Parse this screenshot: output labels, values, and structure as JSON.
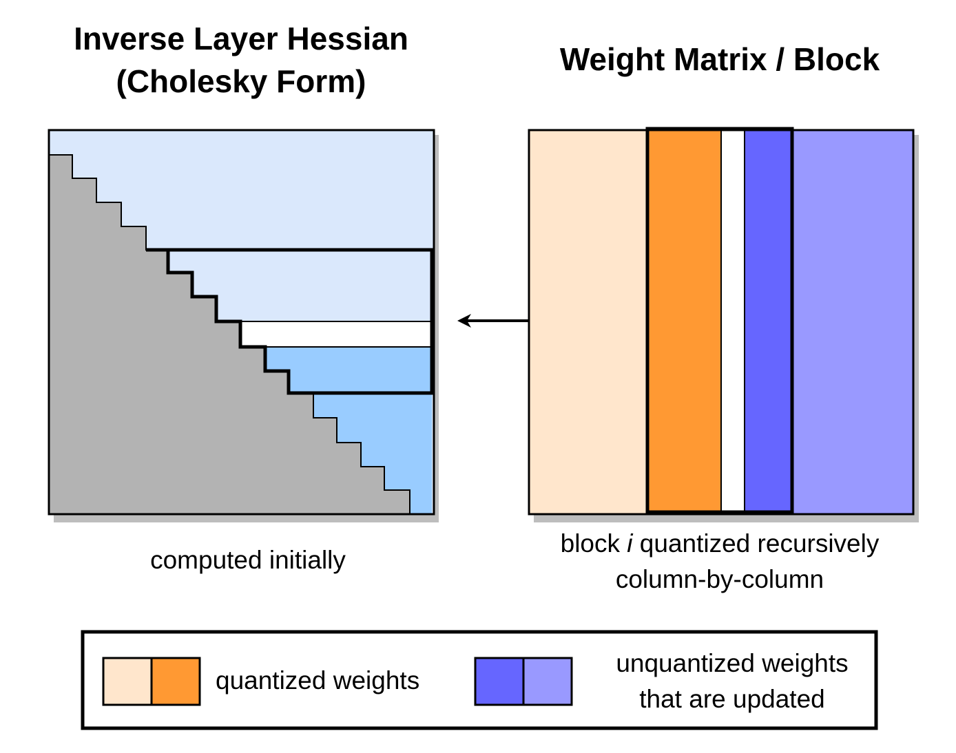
{
  "hessian": {
    "title_line1": "Inverse Layer Hessian",
    "title_line2": "(Cholesky Form)",
    "caption": "computed initially"
  },
  "weights": {
    "title": "Weight Matrix / Block",
    "caption_prefix": "block ",
    "caption_var": "i",
    "caption_suffix": " quantized recursively",
    "caption_line2": "column-by-column"
  },
  "legend": {
    "quantized_label": "quantized weights",
    "unquantized_line1": "unquantized weights",
    "unquantized_line2": "that are updated"
  },
  "colors": {
    "hessian_light": "#dae8fc",
    "hessian_mid": "#99ccff",
    "hessian_lower": "#b3b3b3",
    "quantized_light": "#ffe6cc",
    "quantized_dark": "#ff9933",
    "unquantized_dark": "#6666ff",
    "unquantized_light": "#9999ff",
    "shadow": "#bdbdbd"
  }
}
